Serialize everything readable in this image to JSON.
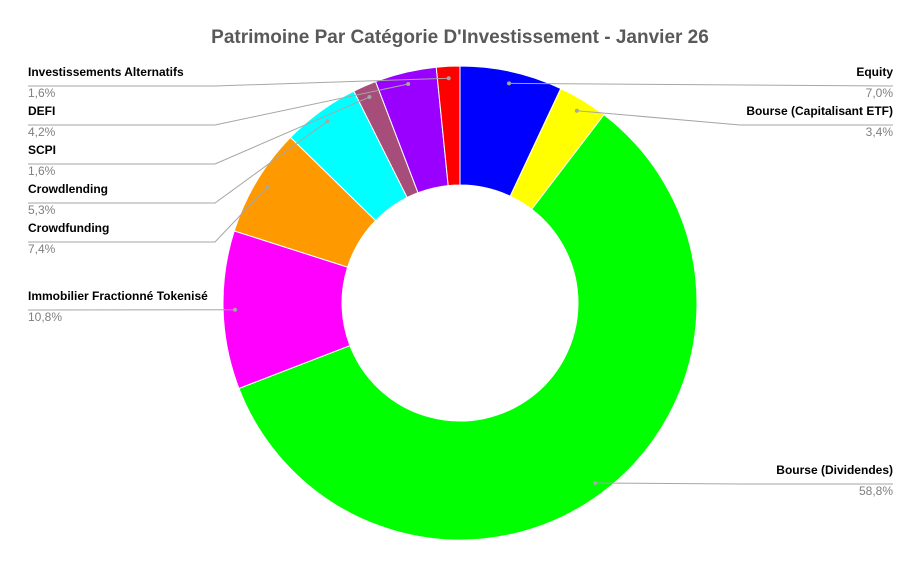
{
  "chart_data": {
    "type": "donut",
    "title": "Patrimoine Par Catégorie D'Investissement - Janvier 26",
    "categories": [
      "Equity",
      "Bourse (Capitalisant ETF)",
      "Bourse (Dividendes)",
      "Immobilier Fractionné Tokenisé",
      "Crowdfunding",
      "Crowdlending",
      "SCPI",
      "DEFI",
      "Investissements Alternatifs"
    ],
    "values": [
      7.0,
      3.4,
      58.8,
      10.8,
      7.4,
      5.3,
      1.6,
      4.2,
      1.6
    ],
    "value_labels": [
      "7,0%",
      "3,4%",
      "58,8%",
      "10,8%",
      "7,4%",
      "5,3%",
      "1,6%",
      "4,2%",
      "1,6%"
    ],
    "colors": [
      "#0000FF",
      "#FFFF00",
      "#00FF00",
      "#FF00FF",
      "#FF9900",
      "#00FFFF",
      "#A64D79",
      "#9900FF",
      "#FF0000"
    ]
  }
}
